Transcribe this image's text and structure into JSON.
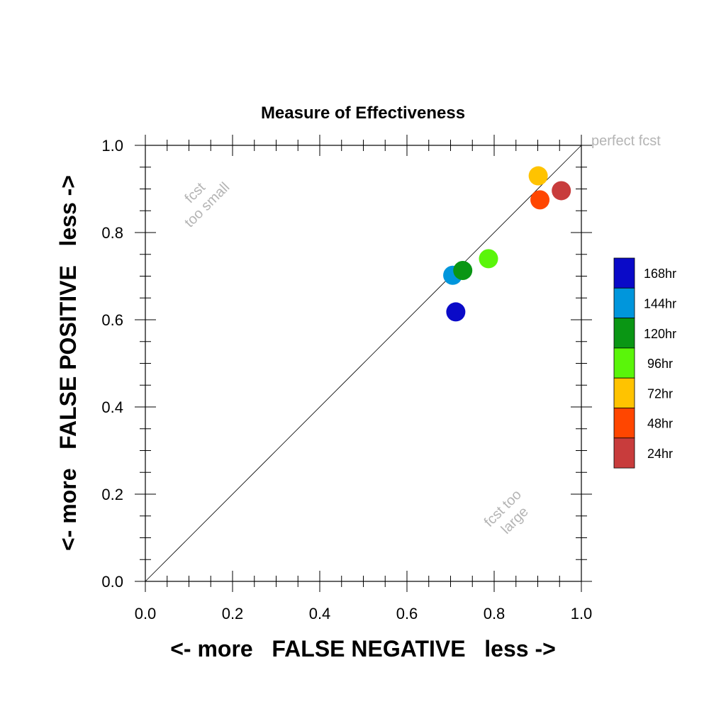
{
  "chart_data": {
    "type": "scatter",
    "title": "Measure of Effectiveness",
    "xlabel": "<- more   FALSE NEGATIVE   less ->",
    "ylabel": "<- more   FALSE POSITIVE   less ->",
    "xlim": [
      0.0,
      1.0
    ],
    "ylim": [
      0.0,
      1.0
    ],
    "x_ticks": [
      "0.0",
      "0.2",
      "0.4",
      "0.6",
      "0.8",
      "1.0"
    ],
    "y_ticks": [
      "0.0",
      "0.2",
      "0.4",
      "0.6",
      "0.8",
      "1.0"
    ],
    "grid": false,
    "legend_placement": "right",
    "diagonal_line": true,
    "annotations": {
      "perfect": "perfect fcst",
      "too_small_1": "fcst",
      "too_small_2": "too small",
      "too_large_1": "fcst too",
      "too_large_2": "large"
    },
    "series": [
      {
        "name": "168hr",
        "color": "#0a0ac8",
        "x": 0.712,
        "y": 0.618
      },
      {
        "name": "144hr",
        "color": "#0096dc",
        "x": 0.705,
        "y": 0.702
      },
      {
        "name": "120hr",
        "color": "#0a9614",
        "x": 0.728,
        "y": 0.713
      },
      {
        "name": "96hr",
        "color": "#5af50a",
        "x": 0.787,
        "y": 0.74
      },
      {
        "name": "72hr",
        "color": "#ffc300",
        "x": 0.901,
        "y": 0.93
      },
      {
        "name": "48hr",
        "color": "#ff4600",
        "x": 0.905,
        "y": 0.875
      },
      {
        "name": "24hr",
        "color": "#c83c3c",
        "x": 0.954,
        "y": 0.896
      }
    ]
  }
}
